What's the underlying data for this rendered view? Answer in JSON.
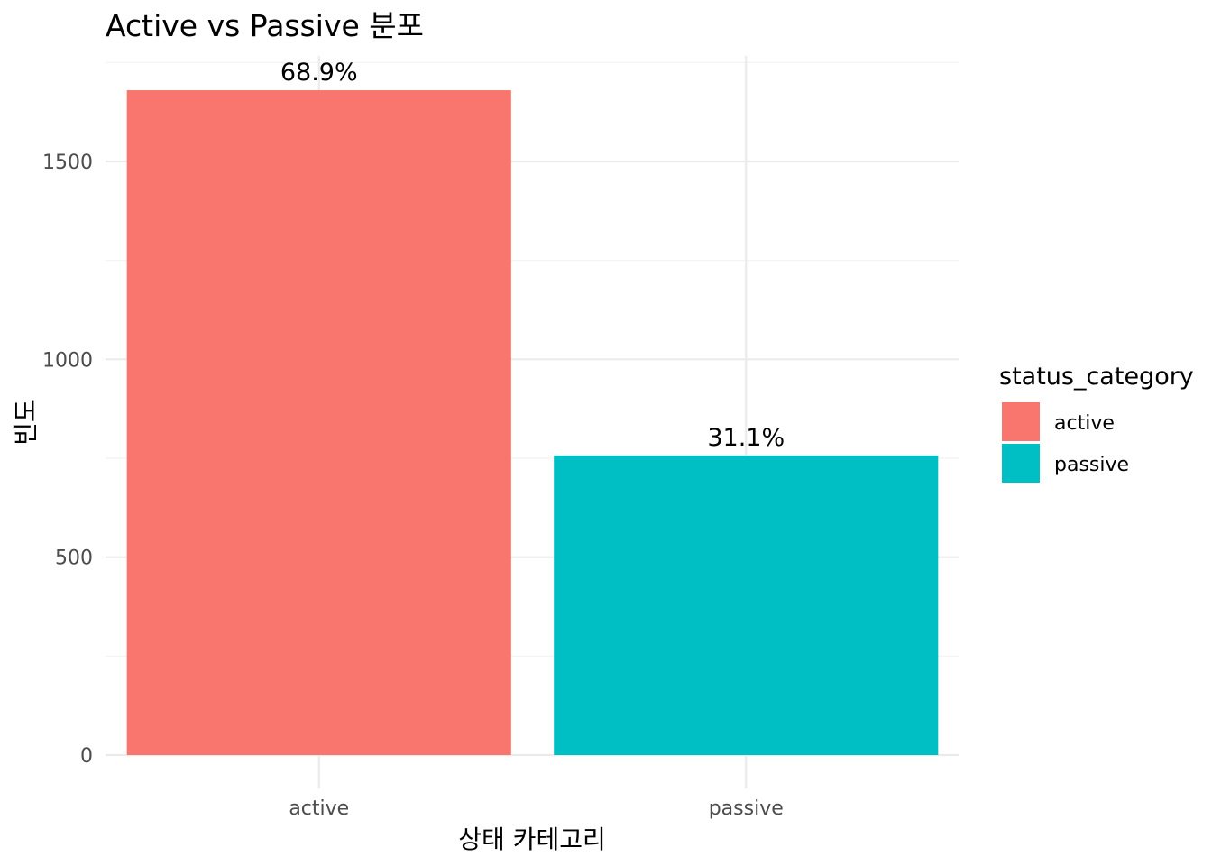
{
  "chart_data": {
    "type": "bar",
    "title": "Active vs Passive 분포",
    "xlabel": "상태 카테고리",
    "ylabel": "빈도",
    "categories": [
      "active",
      "passive"
    ],
    "values": [
      1680,
      757
    ],
    "labels": [
      "68.9%",
      "31.1%"
    ],
    "colors": [
      "#F8766D",
      "#00BFC4"
    ],
    "ylim": [
      0,
      1750
    ],
    "yticks": [
      0,
      500,
      1000,
      1500
    ],
    "grid": true,
    "legend": {
      "title": "status_category",
      "entries": [
        "active",
        "passive"
      ],
      "placement": "right"
    }
  }
}
